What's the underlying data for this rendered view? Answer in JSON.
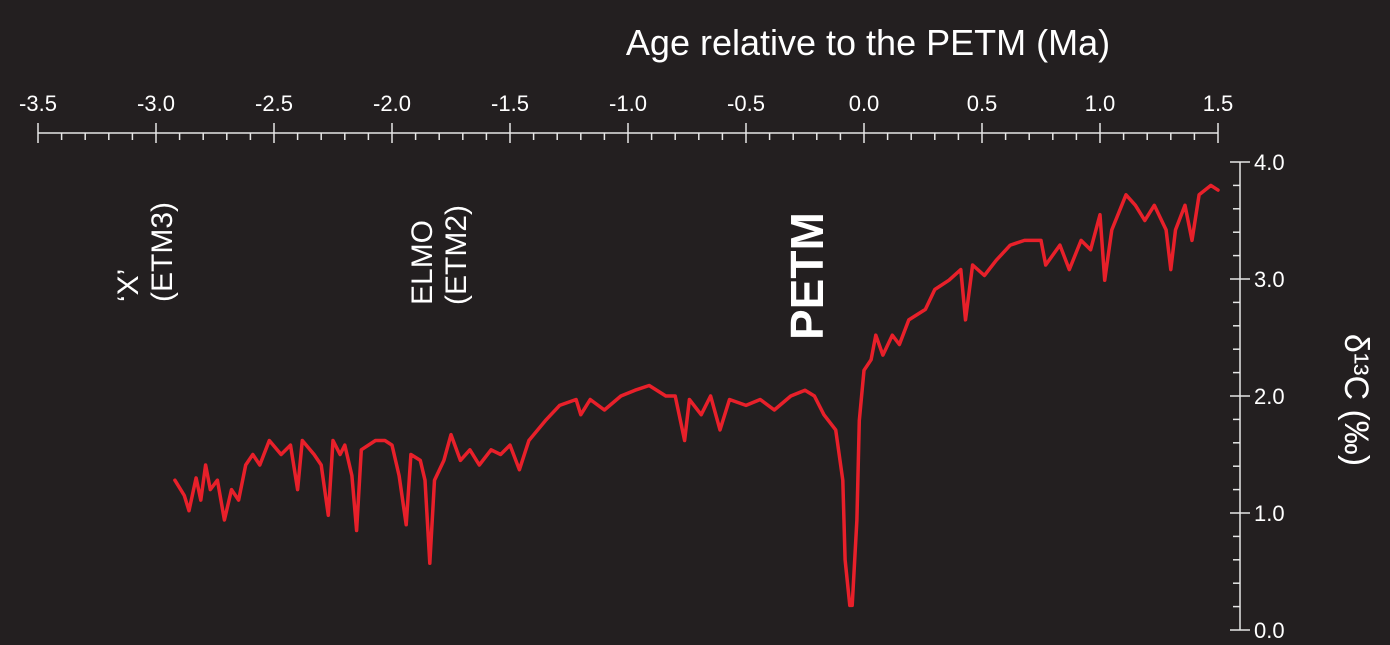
{
  "chart_data": {
    "type": "line",
    "title": "Age relative to the PETM (Ma)",
    "y_label": "δ¹³C (‰)",
    "color": "#e8202a",
    "annotations": [
      {
        "lines": [
          "‘X’",
          "(ETM3)"
        ],
        "bold": false
      },
      {
        "lines": [
          "ELMO",
          "(ETM2)"
        ],
        "bold": false
      },
      {
        "lines": [
          "PETM"
        ],
        "bold": true
      }
    ],
    "xlim": [
      -3.5,
      1.5
    ],
    "xticks": [
      -3.5,
      {
        "value": -3,
        "label": "-3.0"
      },
      -2.5,
      {
        "value": -2,
        "label": "-2.0"
      },
      -1.5,
      {
        "value": -1,
        "label": "-1.0"
      },
      -0.5,
      {
        "value": 0,
        "label": "0.0"
      },
      0.5,
      {
        "value": 1,
        "label": "1.0"
      },
      1.5
    ],
    "xminorticks": [
      -3.4,
      -3.3,
      -3.2,
      -3.1,
      -2.9,
      -2.8,
      -2.7,
      -2.6,
      -2.4,
      -2.3,
      -2.2,
      -2.1,
      -1.9,
      -1.8,
      -1.7,
      -1.6,
      -1.4,
      -1.3,
      -1.2,
      -1.1,
      -0.9,
      -0.8,
      -0.7,
      -0.6,
      -0.4,
      -0.3,
      -0.2,
      -0.1,
      0.1,
      0.2,
      0.3,
      0.4,
      0.6,
      0.7,
      0.8,
      0.9,
      1.1,
      1.2,
      1.3,
      1.4
    ],
    "ylim": [
      0,
      4
    ],
    "yticks": [
      {
        "value": 0,
        "label": "0.0"
      },
      {
        "value": 1,
        "label": "1.0"
      },
      {
        "value": 2,
        "label": "2.0"
      },
      {
        "value": 3,
        "label": "3.0"
      },
      {
        "value": 4,
        "label": "4.0"
      }
    ],
    "yminorticks": [
      0.2,
      0.4,
      0.6,
      0.8,
      1.2,
      1.4,
      1.6,
      1.8,
      2.2,
      2.4,
      2.6,
      2.8,
      3.2,
      3.4,
      3.6,
      3.8
    ],
    "x": [
      -2.92,
      -2.88,
      -2.86,
      -2.83,
      -2.81,
      -2.79,
      -2.77,
      -2.74,
      -2.71,
      -2.68,
      -2.65,
      -2.62,
      -2.59,
      -2.56,
      -2.52,
      -2.47,
      -2.43,
      -2.4,
      -2.38,
      -2.33,
      -2.3,
      -2.27,
      -2.25,
      -2.22,
      -2.2,
      -2.17,
      -2.15,
      -2.13,
      -2.07,
      -2.03,
      -2.0,
      -1.97,
      -1.94,
      -1.92,
      -1.88,
      -1.86,
      -1.84,
      -1.82,
      -1.78,
      -1.75,
      -1.71,
      -1.67,
      -1.63,
      -1.58,
      -1.54,
      -1.5,
      -1.46,
      -1.42,
      -1.35,
      -1.29,
      -1.22,
      -1.2,
      -1.16,
      -1.1,
      -1.03,
      -0.97,
      -0.91,
      -0.84,
      -0.8,
      -0.76,
      -0.74,
      -0.69,
      -0.65,
      -0.61,
      -0.57,
      -0.5,
      -0.44,
      -0.38,
      -0.31,
      -0.25,
      -0.21,
      -0.17,
      -0.12,
      -0.09,
      -0.08,
      -0.06,
      -0.05,
      -0.03,
      -0.02,
      0.0,
      0.03,
      0.05,
      0.08,
      0.12,
      0.15,
      0.19,
      0.26,
      0.3,
      0.36,
      0.41,
      0.43,
      0.46,
      0.51,
      0.56,
      0.62,
      0.68,
      0.75,
      0.77,
      0.83,
      0.87,
      0.92,
      0.96,
      1.0,
      1.02,
      1.05,
      1.11,
      1.15,
      1.19,
      1.23,
      1.28,
      1.3,
      1.32,
      1.36,
      1.39,
      1.42,
      1.47,
      1.5
    ],
    "values": [
      1.28,
      1.15,
      1.02,
      1.3,
      1.11,
      1.41,
      1.2,
      1.28,
      0.94,
      1.2,
      1.11,
      1.41,
      1.5,
      1.41,
      1.62,
      1.5,
      1.58,
      1.2,
      1.62,
      1.5,
      1.41,
      0.98,
      1.62,
      1.5,
      1.58,
      1.32,
      0.85,
      1.54,
      1.62,
      1.62,
      1.58,
      1.32,
      0.9,
      1.5,
      1.45,
      1.28,
      0.57,
      1.28,
      1.45,
      1.67,
      1.45,
      1.54,
      1.41,
      1.54,
      1.5,
      1.58,
      1.37,
      1.62,
      1.79,
      1.92,
      1.97,
      1.84,
      1.97,
      1.88,
      2.0,
      2.05,
      2.09,
      2.0,
      2.0,
      1.62,
      1.97,
      1.84,
      2.0,
      1.71,
      1.97,
      1.92,
      1.97,
      1.88,
      2.0,
      2.05,
      2.0,
      1.84,
      1.71,
      1.28,
      0.6,
      0.21,
      0.21,
      0.94,
      1.79,
      2.22,
      2.31,
      2.52,
      2.35,
      2.52,
      2.44,
      2.65,
      2.74,
      2.91,
      2.99,
      3.08,
      2.65,
      3.12,
      3.03,
      3.16,
      3.29,
      3.33,
      3.33,
      3.12,
      3.29,
      3.08,
      3.33,
      3.25,
      3.55,
      2.99,
      3.42,
      3.72,
      3.63,
      3.5,
      3.63,
      3.42,
      3.08,
      3.42,
      3.63,
      3.33,
      3.72,
      3.8,
      3.76
    ]
  }
}
